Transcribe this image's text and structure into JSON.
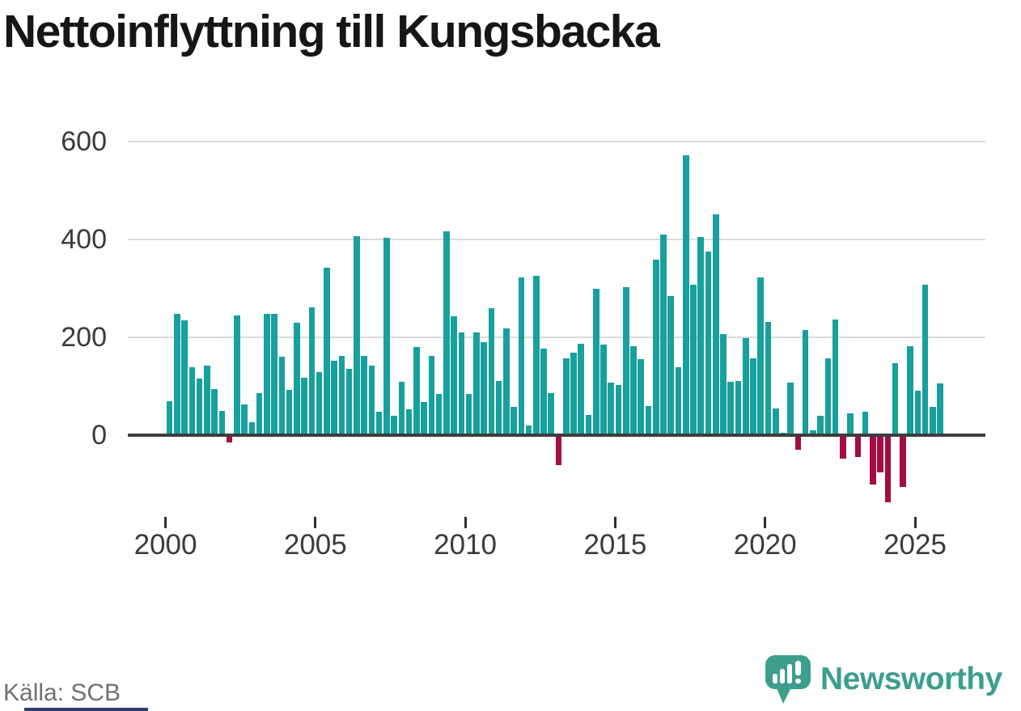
{
  "title": "Nettoinflyttning till Kungsbacka",
  "source": "Källa: SCB",
  "branding": {
    "wordmark": "Newsworthy",
    "logo_icon": "speech-bubble-bar-chart-exclamation"
  },
  "colors": {
    "bar_positive": "#17A09D",
    "bar_negative": "#A30C45",
    "grid": "#dbdbdb",
    "axis": "#3d3d3d",
    "tick_text": "#3a3a3a",
    "title_text": "#161616",
    "source_text": "#707070",
    "brand_teal": "#3C9F8E",
    "bottom_strip_navy": "#2C3E6E"
  },
  "chart_data": {
    "type": "bar",
    "title": "Nettoinflyttning till Kungsbacka",
    "frequency": "quarterly",
    "start_year": 2000,
    "x_ticks": [
      "2000",
      "2005",
      "2010",
      "2015",
      "2020",
      "2025"
    ],
    "y_ticks": [
      0,
      200,
      400,
      600
    ],
    "ylim": [
      -150,
      620
    ],
    "grid": true,
    "legend": false,
    "values": [
      70,
      249,
      235,
      139,
      116,
      143,
      94,
      50,
      -14,
      245,
      63,
      27,
      87,
      248,
      248,
      161,
      93,
      230,
      117,
      261,
      129,
      342,
      152,
      163,
      136,
      407,
      163,
      143,
      48,
      403,
      40,
      110,
      53,
      180,
      69,
      162,
      85,
      417,
      243,
      210,
      84,
      210,
      190,
      259,
      111,
      219,
      59,
      322,
      21,
      325,
      177,
      86,
      -60,
      158,
      169,
      187,
      42,
      299,
      185,
      108,
      103,
      303,
      182,
      155,
      60,
      358,
      410,
      285,
      139,
      572,
      308,
      405,
      376,
      452,
      207,
      109,
      111,
      198,
      158,
      323,
      232,
      55,
      6,
      108,
      -30,
      215,
      10,
      40,
      158,
      236,
      -48,
      45,
      -44,
      48,
      -100,
      -76,
      -137,
      147,
      -105,
      182,
      91,
      307,
      58,
      106
    ]
  }
}
